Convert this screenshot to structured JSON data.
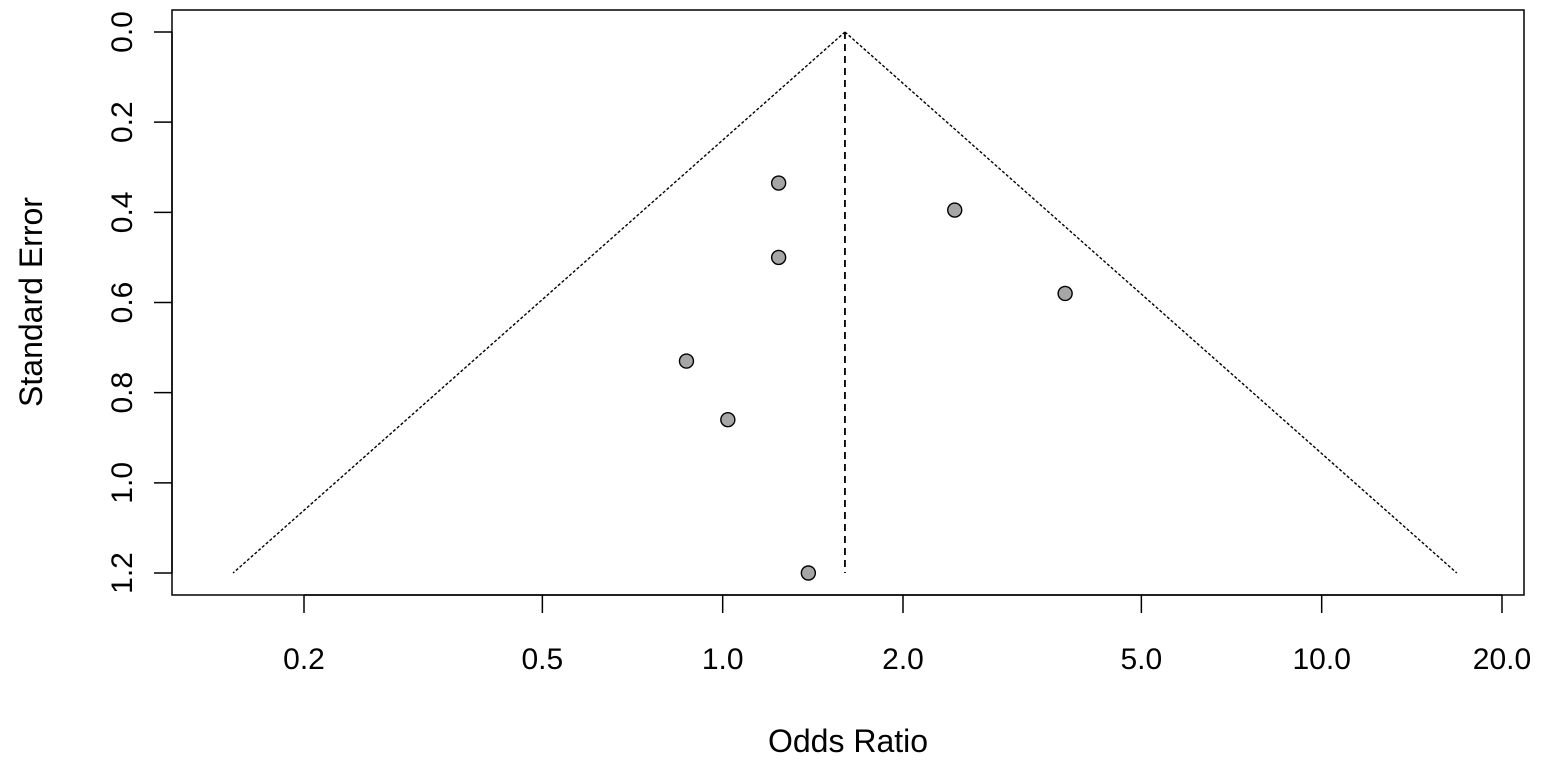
{
  "chart_data": {
    "type": "scatter",
    "subtype": "funnel-plot",
    "title": "",
    "xlabel": "Odds Ratio",
    "ylabel": "Standard Error",
    "x_scale": "log",
    "y_reversed": true,
    "xlim": [
      0.16,
      21
    ],
    "ylim": [
      0,
      1.25
    ],
    "x_ticks": [
      0.2,
      0.5,
      1.0,
      2.0,
      5.0,
      10.0,
      20.0
    ],
    "x_tick_labels": [
      "0.2",
      "0.5",
      "1.0",
      "2.0",
      "5.0",
      "10.0",
      "20.0"
    ],
    "y_ticks": [
      0.0,
      0.2,
      0.4,
      0.6,
      0.8,
      1.0,
      1.2
    ],
    "y_tick_labels": [
      "0.0",
      "0.2",
      "0.4",
      "0.6",
      "0.8",
      "1.0",
      "1.2"
    ],
    "grid": false,
    "legend": "none",
    "pooled_estimate": 1.6,
    "funnel_max_se": 1.2,
    "points": [
      {
        "x": 1.24,
        "y": 0.335
      },
      {
        "x": 2.44,
        "y": 0.395
      },
      {
        "x": 1.24,
        "y": 0.5
      },
      {
        "x": 3.73,
        "y": 0.58
      },
      {
        "x": 0.87,
        "y": 0.73
      },
      {
        "x": 1.02,
        "y": 0.86
      },
      {
        "x": 1.39,
        "y": 1.2
      }
    ],
    "colors": {
      "point_fill": "#a6a6a6",
      "point_stroke": "#000000",
      "lines": "#000000"
    }
  }
}
